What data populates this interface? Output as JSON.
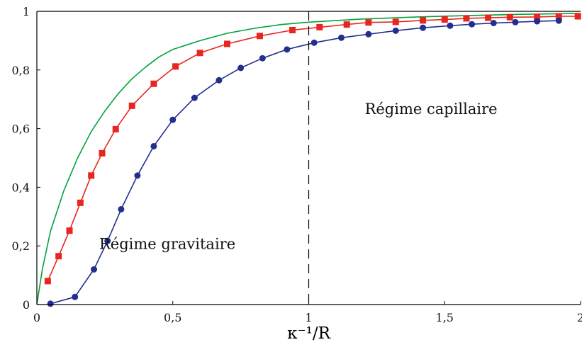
{
  "chart_data": {
    "type": "line",
    "title": "",
    "xlabel": "κ⁻¹/R",
    "ylabel": "",
    "xlim": [
      0,
      2
    ],
    "ylim": [
      0,
      1
    ],
    "grid": false,
    "x_ticks": [
      0,
      0.5,
      1,
      1.5,
      2
    ],
    "x_tick_labels": [
      "0",
      "0,5",
      "1",
      "1,5",
      "2"
    ],
    "y_ticks": [
      0,
      0.2,
      0.4,
      0.6,
      0.8,
      1
    ],
    "y_tick_labels": [
      "0",
      "0,2",
      "0,4",
      "0,6",
      "0,8",
      "1"
    ],
    "vertical_line": {
      "x": 1,
      "style": "dashed",
      "color": "#000000"
    },
    "annotations": [
      {
        "text": "Régime gravitaire",
        "x": 0.48,
        "y": 0.19
      },
      {
        "text": "Régime capillaire",
        "x": 1.45,
        "y": 0.65
      }
    ],
    "series": [
      {
        "color": "#00a23a",
        "marker": "none",
        "x": [
          0,
          0.02,
          0.05,
          0.1,
          0.15,
          0.2,
          0.25,
          0.3,
          0.35,
          0.4,
          0.45,
          0.5,
          0.6,
          0.7,
          0.8,
          0.9,
          1.0,
          1.2,
          1.4,
          1.6,
          1.8,
          2.0
        ],
        "y": [
          0,
          0.12,
          0.25,
          0.39,
          0.5,
          0.59,
          0.66,
          0.72,
          0.77,
          0.81,
          0.845,
          0.87,
          0.9,
          0.925,
          0.942,
          0.955,
          0.963,
          0.974,
          0.981,
          0.986,
          0.99,
          0.993
        ]
      },
      {
        "color": "#e8251e",
        "marker": "square",
        "x": [
          0.04,
          0.08,
          0.12,
          0.16,
          0.2,
          0.24,
          0.29,
          0.35,
          0.43,
          0.51,
          0.6,
          0.7,
          0.82,
          0.94,
          1.04,
          1.14,
          1.22,
          1.32,
          1.42,
          1.5,
          1.58,
          1.66,
          1.74,
          1.84,
          1.92,
          1.99
        ],
        "y": [
          0.08,
          0.165,
          0.252,
          0.347,
          0.44,
          0.516,
          0.598,
          0.678,
          0.753,
          0.812,
          0.858,
          0.889,
          0.916,
          0.936,
          0.946,
          0.955,
          0.962,
          0.964,
          0.969,
          0.972,
          0.976,
          0.978,
          0.98,
          0.981,
          0.983,
          0.983
        ]
      },
      {
        "color": "#232f8f",
        "marker": "circle",
        "x": [
          0.05,
          0.14,
          0.21,
          0.26,
          0.31,
          0.37,
          0.43,
          0.5,
          0.58,
          0.67,
          0.75,
          0.83,
          0.92,
          1.02,
          1.12,
          1.22,
          1.32,
          1.42,
          1.52,
          1.6,
          1.68,
          1.76,
          1.84,
          1.92
        ],
        "y": [
          0.003,
          0.026,
          0.12,
          0.217,
          0.325,
          0.44,
          0.54,
          0.63,
          0.705,
          0.765,
          0.807,
          0.84,
          0.87,
          0.893,
          0.91,
          0.922,
          0.934,
          0.944,
          0.951,
          0.956,
          0.96,
          0.963,
          0.966,
          0.968
        ]
      }
    ]
  }
}
